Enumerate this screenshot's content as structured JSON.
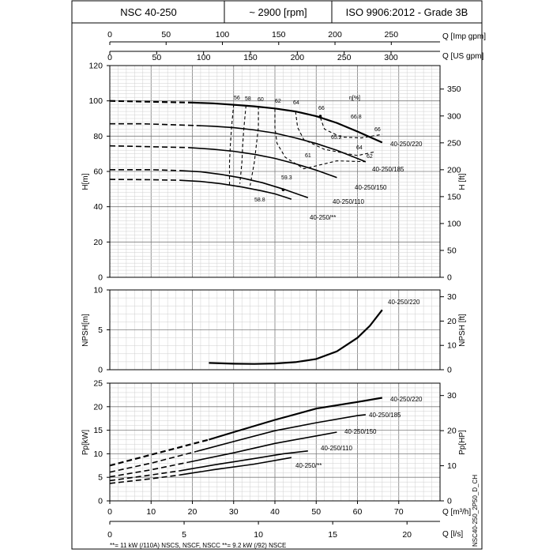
{
  "header": {
    "model": "NSC 40-250",
    "speed": "~ 2900 [rpm]",
    "standard": "ISO 9906:2012 - Grade 3B"
  },
  "footer": {
    "note": "**= 11 kW (/110A) NSCS, NSCF, NSCC   **= 9.2 kW (/92) NSCE",
    "code": "NSC40-250_2P50_D_CH"
  },
  "axes": {
    "q_imp": {
      "label": "Q [Imp gpm]",
      "ticks": [
        "0",
        "50",
        "100",
        "150",
        "200",
        "250"
      ],
      "values": [
        0,
        50,
        100,
        150,
        200,
        250
      ]
    },
    "q_us": {
      "label": "Q [US gpm]",
      "ticks": [
        "0",
        "50",
        "100",
        "150",
        "200",
        "250",
        "300"
      ],
      "values": [
        0,
        50,
        100,
        150,
        200,
        250,
        300
      ]
    },
    "q_m3h": {
      "label": "Q [m³/h]",
      "ticks": [
        "0",
        "10",
        "20",
        "30",
        "40",
        "50",
        "60",
        "70"
      ],
      "values": [
        0,
        10,
        20,
        30,
        40,
        50,
        60,
        70
      ]
    },
    "q_ls": {
      "label": "Q [l/s]",
      "ticks": [
        "0",
        "5",
        "10",
        "15",
        "20"
      ],
      "values": [
        0,
        5,
        10,
        15,
        20
      ]
    },
    "h_m": {
      "label": "H[m]",
      "ticks": [
        "0",
        "20",
        "40",
        "60",
        "80",
        "100",
        "120"
      ],
      "values": [
        0,
        20,
        40,
        60,
        80,
        100,
        120
      ]
    },
    "h_ft": {
      "label": "H [ft]",
      "ticks": [
        "0",
        "50",
        "100",
        "150",
        "200",
        "250",
        "300",
        "350"
      ],
      "values": [
        0,
        50,
        100,
        150,
        200,
        250,
        300,
        350
      ]
    },
    "npsh_m": {
      "label": "NPSH[m]",
      "ticks": [
        "0",
        "5",
        "10"
      ],
      "values": [
        0,
        5,
        10
      ]
    },
    "npsh_ft": {
      "label": "NPSH [ft]",
      "ticks": [
        "0",
        "10",
        "20",
        "30"
      ],
      "values": [
        0,
        10,
        20,
        30
      ]
    },
    "p_kw": {
      "label": "Pp[kW]",
      "ticks": [
        "0",
        "5",
        "10",
        "15",
        "20",
        "25"
      ],
      "values": [
        0,
        5,
        10,
        15,
        20,
        25
      ]
    },
    "p_hp": {
      "label": "Pp[HP]",
      "ticks": [
        "0",
        "10",
        "20",
        "30"
      ],
      "values": [
        0,
        10,
        20,
        30
      ]
    }
  },
  "chart_data": [
    {
      "type": "line",
      "panel": "head",
      "x_unit": "m³/h",
      "xlim": [
        0,
        80
      ],
      "ylim": [
        0,
        120
      ],
      "y_unit": "m",
      "eta_axis_label": "η[%]",
      "series": [
        {
          "name": "40-250/220",
          "dashed": [
            [
              0,
              100
            ],
            [
              10,
              99.5
            ],
            [
              20,
              99
            ]
          ],
          "solid": [
            [
              20,
              99
            ],
            [
              25,
              98.6
            ],
            [
              30,
              97.8
            ],
            [
              35,
              96.9
            ],
            [
              40,
              95.7
            ],
            [
              45,
              94
            ],
            [
              50,
              91.3
            ],
            [
              55,
              87.5
            ],
            [
              60,
              82.6
            ],
            [
              66,
              76.4
            ]
          ]
        },
        {
          "name": "40-250/185",
          "dashed": [
            [
              0,
              87
            ],
            [
              8,
              87
            ],
            [
              21,
              86
            ]
          ],
          "solid": [
            [
              21,
              86
            ],
            [
              25,
              85.6
            ],
            [
              30,
              84.8
            ],
            [
              35,
              83.5
            ],
            [
              40,
              81.7
            ],
            [
              45,
              79
            ],
            [
              50,
              75.8
            ],
            [
              55,
              72
            ],
            [
              62,
              65.5
            ]
          ]
        },
        {
          "name": "40-250/150",
          "dashed": [
            [
              0,
              74.5
            ],
            [
              10,
              74
            ],
            [
              19,
              73.5
            ]
          ],
          "solid": [
            [
              19,
              73.5
            ],
            [
              25,
              72.6
            ],
            [
              30,
              71.4
            ],
            [
              35,
              69.7
            ],
            [
              40,
              67.4
            ],
            [
              45,
              64.3
            ],
            [
              50,
              60.7
            ],
            [
              55,
              56.5
            ]
          ]
        },
        {
          "name": "40-250/110",
          "dashed": [
            [
              0,
              61
            ],
            [
              10,
              61
            ],
            [
              17,
              60.5
            ]
          ],
          "solid": [
            [
              17,
              60.5
            ],
            [
              22,
              59.8
            ],
            [
              27,
              58.3
            ],
            [
              32,
              56.3
            ],
            [
              37,
              53.6
            ],
            [
              42,
              50
            ],
            [
              48,
              45.1
            ]
          ]
        },
        {
          "name": "40-250/**",
          "dashed": [
            [
              0,
              55.5
            ],
            [
              10,
              55.3
            ],
            [
              17,
              55
            ]
          ],
          "solid": [
            [
              17,
              55
            ],
            [
              22,
              54.3
            ],
            [
              27,
              53
            ],
            [
              32,
              51.2
            ],
            [
              37,
              48.9
            ],
            [
              40,
              47.3
            ],
            [
              44,
              44.3
            ]
          ]
        }
      ],
      "efficiency_contours": [
        {
          "label": "56",
          "points": [
            [
              30,
              98
            ],
            [
              29.5,
              85
            ],
            [
              29.2,
              75
            ],
            [
              29,
              65
            ],
            [
              29,
              52
            ]
          ]
        },
        {
          "label": "58",
          "points": [
            [
              33,
              97.5
            ],
            [
              32.5,
              85
            ],
            [
              32.2,
              75
            ],
            [
              32,
              65
            ],
            [
              31.5,
              53
            ]
          ]
        },
        {
          "label": "60",
          "points": [
            [
              36,
              97
            ],
            [
              36,
              85
            ],
            [
              35.5,
              75
            ],
            [
              35,
              65
            ],
            [
              34,
              52
            ]
          ]
        },
        {
          "label": "62",
          "points": [
            [
              40,
              95.5
            ],
            [
              40,
              85
            ],
            [
              40.5,
              76
            ],
            [
              42.5,
              68
            ],
            [
              47,
              61.5
            ],
            [
              55,
              66
            ],
            [
              62,
              65.5
            ]
          ]
        },
        {
          "label": "64",
          "points": [
            [
              45,
              94
            ],
            [
              45.5,
              85
            ],
            [
              47,
              78
            ],
            [
              52,
              72.5
            ],
            [
              60,
              69
            ],
            [
              64,
              71
            ]
          ]
        },
        {
          "label": "66",
          "points": [
            [
              51,
              90.5
            ],
            [
              52,
              84
            ],
            [
              56,
              79.5
            ],
            [
              61,
              79
            ],
            [
              66,
              81
            ]
          ]
        }
      ],
      "efficiency_labels": [
        "56",
        "58",
        "60",
        "62",
        "64",
        "66",
        "66.8",
        "66",
        "65.2",
        "64",
        "62",
        "61",
        "59.3",
        "58.8"
      ]
    },
    {
      "type": "line",
      "panel": "npsh",
      "x_unit": "m³/h",
      "xlim": [
        0,
        80
      ],
      "ylim": [
        0,
        10
      ],
      "y_unit": "m",
      "series": [
        {
          "name": "40-250/220",
          "solid": [
            [
              24,
              0.85
            ],
            [
              30,
              0.75
            ],
            [
              35,
              0.72
            ],
            [
              40,
              0.78
            ],
            [
              45,
              0.95
            ],
            [
              50,
              1.35
            ],
            [
              55,
              2.3
            ],
            [
              60,
              4.0
            ],
            [
              63,
              5.5
            ],
            [
              66,
              7.5
            ]
          ]
        }
      ]
    },
    {
      "type": "line",
      "panel": "power",
      "x_unit": "m³/h",
      "xlim": [
        0,
        80
      ],
      "ylim": [
        0,
        25
      ],
      "y_unit": "kW",
      "series": [
        {
          "name": "40-250/220",
          "dashed": [
            [
              0,
              7.5
            ],
            [
              10,
              9.8
            ],
            [
              24,
              13
            ]
          ],
          "solid": [
            [
              24,
              13
            ],
            [
              30,
              14.6
            ],
            [
              40,
              17.2
            ],
            [
              50,
              19.6
            ],
            [
              60,
              21
            ],
            [
              66,
              21.9
            ]
          ]
        },
        {
          "name": "40-250/185",
          "dashed": [
            [
              0,
              6.1
            ],
            [
              10,
              8
            ],
            [
              21,
              10.5
            ]
          ],
          "solid": [
            [
              21,
              10.5
            ],
            [
              30,
              12.6
            ],
            [
              40,
              14.9
            ],
            [
              50,
              16.6
            ],
            [
              60,
              18.1
            ],
            [
              62,
              18.3
            ]
          ]
        },
        {
          "name": "40-250/150",
          "dashed": [
            [
              0,
              5.1
            ],
            [
              10,
              6.6
            ],
            [
              19,
              8.2
            ]
          ],
          "solid": [
            [
              19,
              8.2
            ],
            [
              30,
              10.2
            ],
            [
              40,
              12.2
            ],
            [
              50,
              13.8
            ],
            [
              55,
              14.6
            ]
          ]
        },
        {
          "name": "40-250/110",
          "dashed": [
            [
              0,
              4.3
            ],
            [
              10,
              5.5
            ],
            [
              17,
              6.4
            ]
          ],
          "solid": [
            [
              17,
              6.4
            ],
            [
              25,
              7.6
            ],
            [
              35,
              9
            ],
            [
              42,
              10
            ],
            [
              48,
              10.6
            ]
          ]
        },
        {
          "name": "40-250/**",
          "dashed": [
            [
              0,
              3.7
            ],
            [
              10,
              4.7
            ],
            [
              17,
              5.5
            ]
          ],
          "solid": [
            [
              17,
              5.5
            ],
            [
              25,
              6.6
            ],
            [
              35,
              7.8
            ],
            [
              44,
              9.2
            ]
          ]
        }
      ]
    }
  ]
}
